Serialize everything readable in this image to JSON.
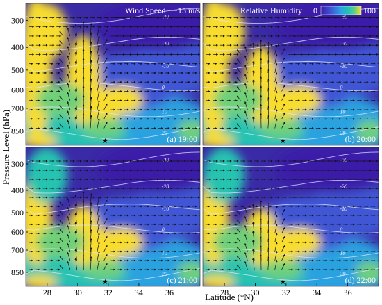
{
  "chart_data": {
    "type": "heatmap",
    "ylabel": "Pressure Level (hPa)",
    "xlabel": "Latitude (°N)",
    "y_ticks": [
      "300",
      "400",
      "500",
      "600",
      "700",
      "850"
    ],
    "x_ticks": [
      "28",
      "30",
      "32",
      "34",
      "36"
    ],
    "wind_legend": {
      "label": "Wind Speed",
      "value": "15 m/s"
    },
    "humidity_legend": {
      "label": "Relative Humidity",
      "min": "0",
      "max": "100"
    },
    "colormap": [
      "#3b1ea8",
      "#3f56d4",
      "#2aa2e0",
      "#25c3b0",
      "#6fd07a",
      "#f8dd2e"
    ],
    "isotherm_labels": [
      "-30",
      "-20",
      "-10",
      "0",
      "10",
      "20"
    ],
    "marker": "★",
    "panels": [
      {
        "label": "(a) 19:00"
      },
      {
        "label": "(b) 20:00"
      },
      {
        "label": "(c) 21:00"
      },
      {
        "label": "(d) 22:00"
      }
    ]
  }
}
